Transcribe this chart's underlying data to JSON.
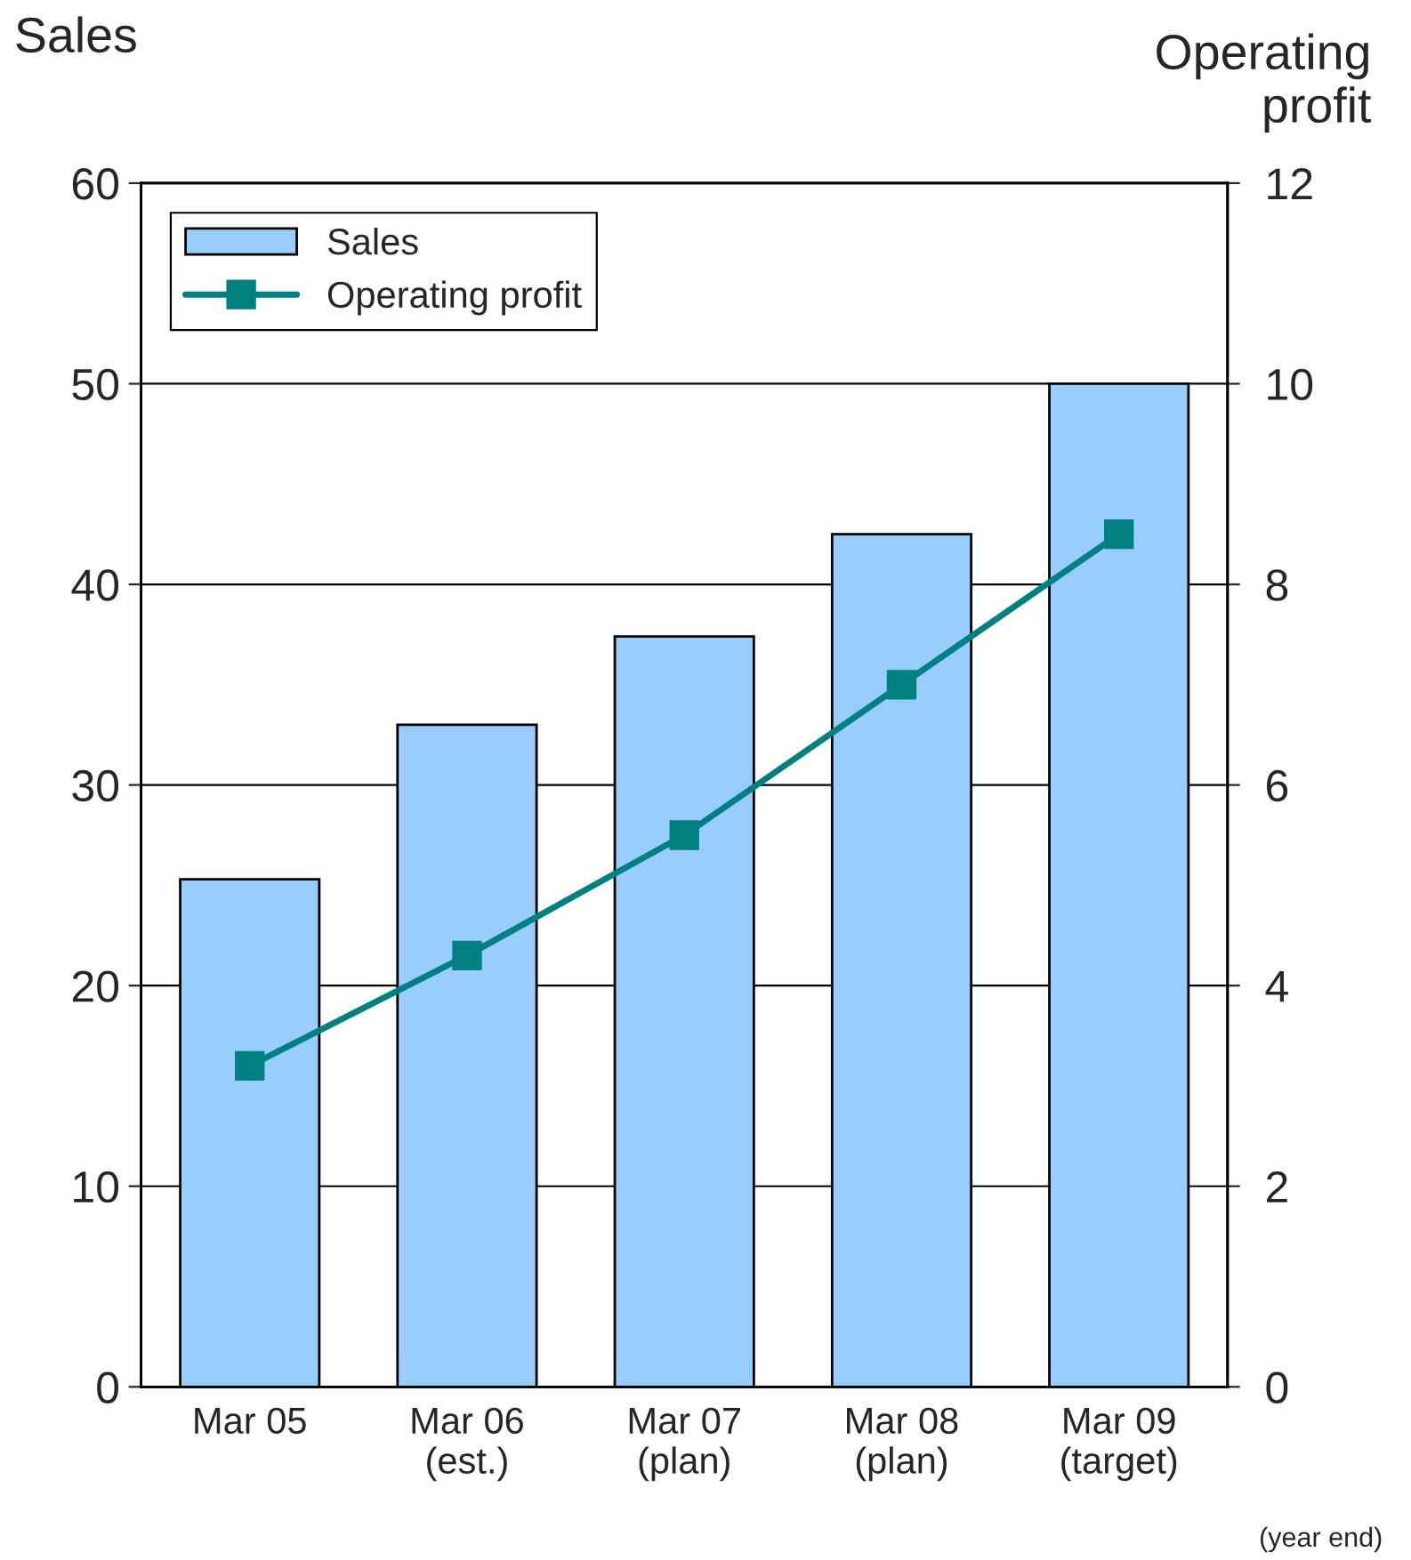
{
  "chart_data": {
    "type": "bar",
    "ylabel": "Sales",
    "y2label": "Operating\nprofit",
    "categories": [
      "Mar 05",
      "Mar 06\n(est.)",
      "Mar 07\n(plan)",
      "Mar 08\n(plan)",
      "Mar 09\n(target)"
    ],
    "series": [
      {
        "name": "Sales",
        "color": "#99ccff",
        "values": [
          25.3,
          33.0,
          37.4,
          42.5,
          50
        ]
      },
      {
        "name": "Operating profit",
        "type": "line",
        "axis": "y2",
        "color": "#008080",
        "marker": "square",
        "values": [
          3.2,
          4.3,
          5.5,
          7.0,
          8.5
        ]
      }
    ],
    "ylim": [
      0,
      60
    ],
    "yticks": [
      0,
      10,
      20,
      30,
      40,
      50,
      60
    ],
    "y2lim": [
      0,
      12
    ],
    "y2ticks": [
      0,
      2,
      4,
      6,
      8,
      10,
      12
    ],
    "grid": "y",
    "legend": "top left",
    "annotations": [
      "(year end)"
    ]
  }
}
